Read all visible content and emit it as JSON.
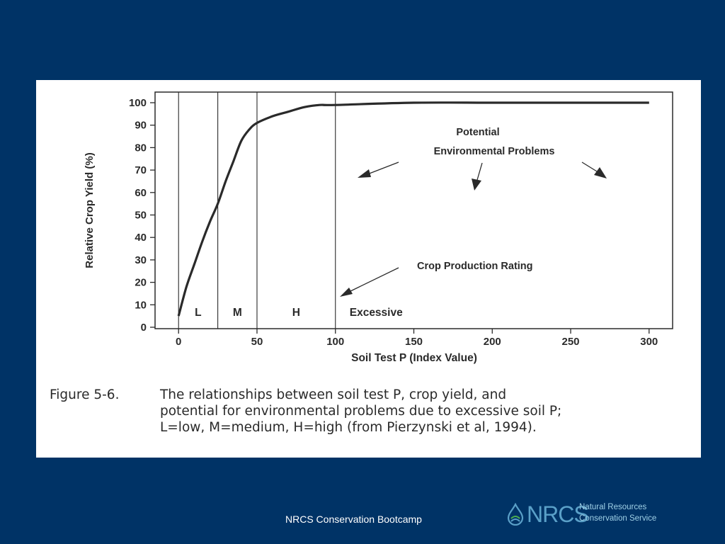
{
  "chart_data": {
    "type": "line",
    "xlabel": "Soil Test P (Index Value)",
    "ylabel": "Relative Crop Yield (%)",
    "xlim": [
      -15,
      315
    ],
    "ylim": [
      0,
      100
    ],
    "x_ticks": [
      0,
      50,
      100,
      150,
      200,
      250,
      300
    ],
    "y_ticks": [
      0,
      10,
      20,
      30,
      40,
      50,
      60,
      70,
      80,
      90,
      100
    ],
    "grid": false,
    "series": [
      {
        "x": [
          0,
          5,
          10,
          15,
          20,
          25,
          30,
          35,
          40,
          45,
          50,
          60,
          70,
          80,
          90,
          100,
          150,
          200,
          250,
          300
        ],
        "y": [
          5,
          18,
          28,
          38,
          47,
          55,
          65,
          74,
          83,
          88,
          91,
          94,
          96,
          98,
          99,
          99,
          100,
          100,
          100,
          100
        ]
      }
    ],
    "regions": [
      {
        "label": "L",
        "from": 0,
        "to": 25
      },
      {
        "label": "M",
        "from": 25,
        "to": 50
      },
      {
        "label": "H",
        "from": 50,
        "to": 100
      },
      {
        "label": "Excessive",
        "from": 100,
        "to": 300
      }
    ],
    "annotations": {
      "potential_line1": "Potential",
      "potential_line2": "Environmental Problems",
      "crop_rating": "Crop Production Rating"
    }
  },
  "caption": {
    "label": "Figure 5-6.",
    "line1": "The relationships between soil test P, crop yield, and",
    "line2": "potential for environmental problems due to excessive soil P;",
    "line3": "L=low, M=medium, H=high (from Pierzynski et al, 1994)."
  },
  "footer": {
    "text": "NRCS Conservation Bootcamp"
  },
  "logo": {
    "acronym": "NRCS",
    "line1": "Natural Resources",
    "line2": "Conservation Service"
  },
  "colors": {
    "background": "#003366",
    "panel": "#ffffff",
    "ink": "#2a2a2a",
    "logo_blue": "#5aa0c8"
  }
}
